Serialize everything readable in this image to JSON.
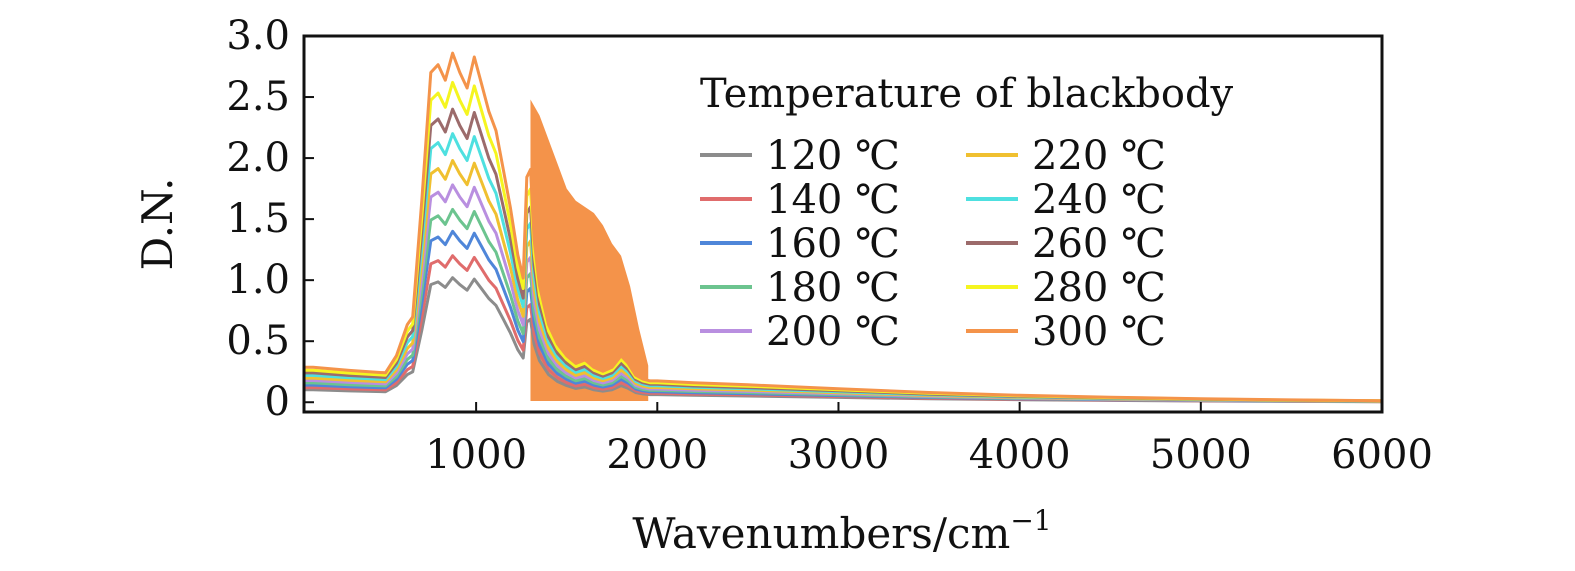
{
  "chart_data": {
    "type": "line",
    "title": "",
    "xlabel": "Wavenumbers/cm",
    "xlabel_superscript": "−1",
    "ylabel": "D.N.",
    "xlim": [
      50,
      6000
    ],
    "ylim": [
      -0.08,
      3.0
    ],
    "x_ticks": [
      1000,
      2000,
      3000,
      4000,
      5000,
      6000
    ],
    "x_tick_labels": [
      "1000",
      "2000",
      "3000",
      "4000",
      "5000",
      "6000"
    ],
    "y_ticks": [
      0,
      0.5,
      1.0,
      1.5,
      2.0,
      2.5,
      3.0
    ],
    "y_tick_labels": [
      "0",
      "0.5",
      "1.0",
      "1.5",
      "2.0",
      "2.5",
      "3.0"
    ],
    "grid": false,
    "legend": {
      "title": "Temperature of blackbody",
      "placement": "top-right",
      "columns": 2
    },
    "profile_x": [
      50,
      100,
      300,
      500,
      560,
      620,
      650,
      700,
      750,
      790,
      830,
      870,
      910,
      950,
      990,
      1030,
      1070,
      1110,
      1150,
      1190,
      1230,
      1260,
      1280,
      1300,
      1320,
      1350,
      1400,
      1450,
      1500,
      1550,
      1600,
      1650,
      1700,
      1750,
      1800,
      1840,
      1880,
      1920,
      1960,
      2000,
      2200,
      2500,
      3000,
      3500,
      4000,
      4500,
      5000,
      5500,
      6000
    ],
    "profile_shape": [
      0.09,
      0.09,
      0.082,
      0.076,
      0.12,
      0.2,
      0.22,
      0.52,
      0.85,
      0.87,
      0.83,
      0.9,
      0.85,
      0.81,
      0.89,
      0.82,
      0.75,
      0.7,
      0.6,
      0.5,
      0.38,
      0.32,
      0.58,
      0.6,
      0.42,
      0.3,
      0.2,
      0.15,
      0.12,
      0.1,
      0.11,
      0.09,
      0.08,
      0.09,
      0.12,
      0.1,
      0.07,
      0.06,
      0.055,
      0.055,
      0.05,
      0.045,
      0.035,
      0.025,
      0.018,
      0.013,
      0.009,
      0.006,
      0.004
    ],
    "series": [
      {
        "name": "120 ℃",
        "color": "#8c8c8c",
        "peak": 1.02
      },
      {
        "name": "140 ℃",
        "color": "#e06c6c",
        "peak": 1.2
      },
      {
        "name": "160 ℃",
        "color": "#4f86d9",
        "peak": 1.4
      },
      {
        "name": "180 ℃",
        "color": "#6cc48f",
        "peak": 1.58
      },
      {
        "name": "200 ℃",
        "color": "#b98fe0",
        "peak": 1.78
      },
      {
        "name": "220 ℃",
        "color": "#f0c030",
        "peak": 1.98
      },
      {
        "name": "240 ℃",
        "color": "#4ee0e0",
        "peak": 2.2
      },
      {
        "name": "260 ℃",
        "color": "#9c6b6b",
        "peak": 2.4
      },
      {
        "name": "280 ℃",
        "color": "#f5f520",
        "peak": 2.62
      },
      {
        "name": "300 ℃",
        "color": "#f4934a",
        "peak": 2.86
      }
    ],
    "noise_band": {
      "series": "300 ℃",
      "x": [
        1300,
        1350,
        1400,
        1450,
        1500,
        1550,
        1600,
        1650,
        1700,
        1750,
        1800,
        1850,
        1900,
        1950
      ],
      "upper": [
        2.48,
        2.35,
        2.15,
        1.95,
        1.75,
        1.65,
        1.6,
        1.55,
        1.45,
        1.3,
        1.2,
        0.95,
        0.6,
        0.3
      ]
    }
  }
}
